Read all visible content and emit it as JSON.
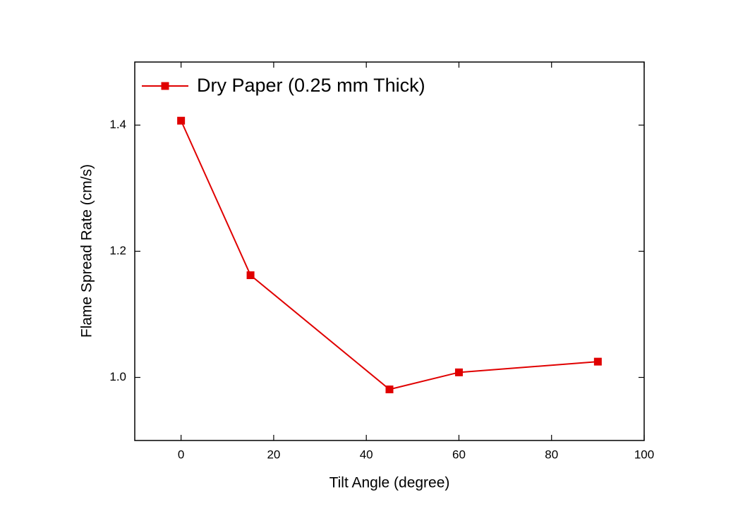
{
  "chart_data": {
    "type": "line",
    "x_label": "Tilt Angle (degree)",
    "y_label": "Flame Spread Rate (cm/s)",
    "x": [
      0,
      15,
      45,
      60,
      90
    ],
    "series": [
      {
        "name": "Dry Paper (0.25 mm Thick)",
        "color": "#e00000",
        "values": [
          1.407,
          1.162,
          0.981,
          1.008,
          1.025
        ]
      }
    ],
    "xlim": [
      -10,
      100
    ],
    "xticks": [
      0,
      20,
      40,
      60,
      80,
      100
    ],
    "ylim": [
      0.9,
      1.5
    ],
    "yticks": [
      {
        "value": 1,
        "label": "1.0"
      },
      1.2,
      1.4
    ],
    "legend": "upper left",
    "grid": false
  }
}
